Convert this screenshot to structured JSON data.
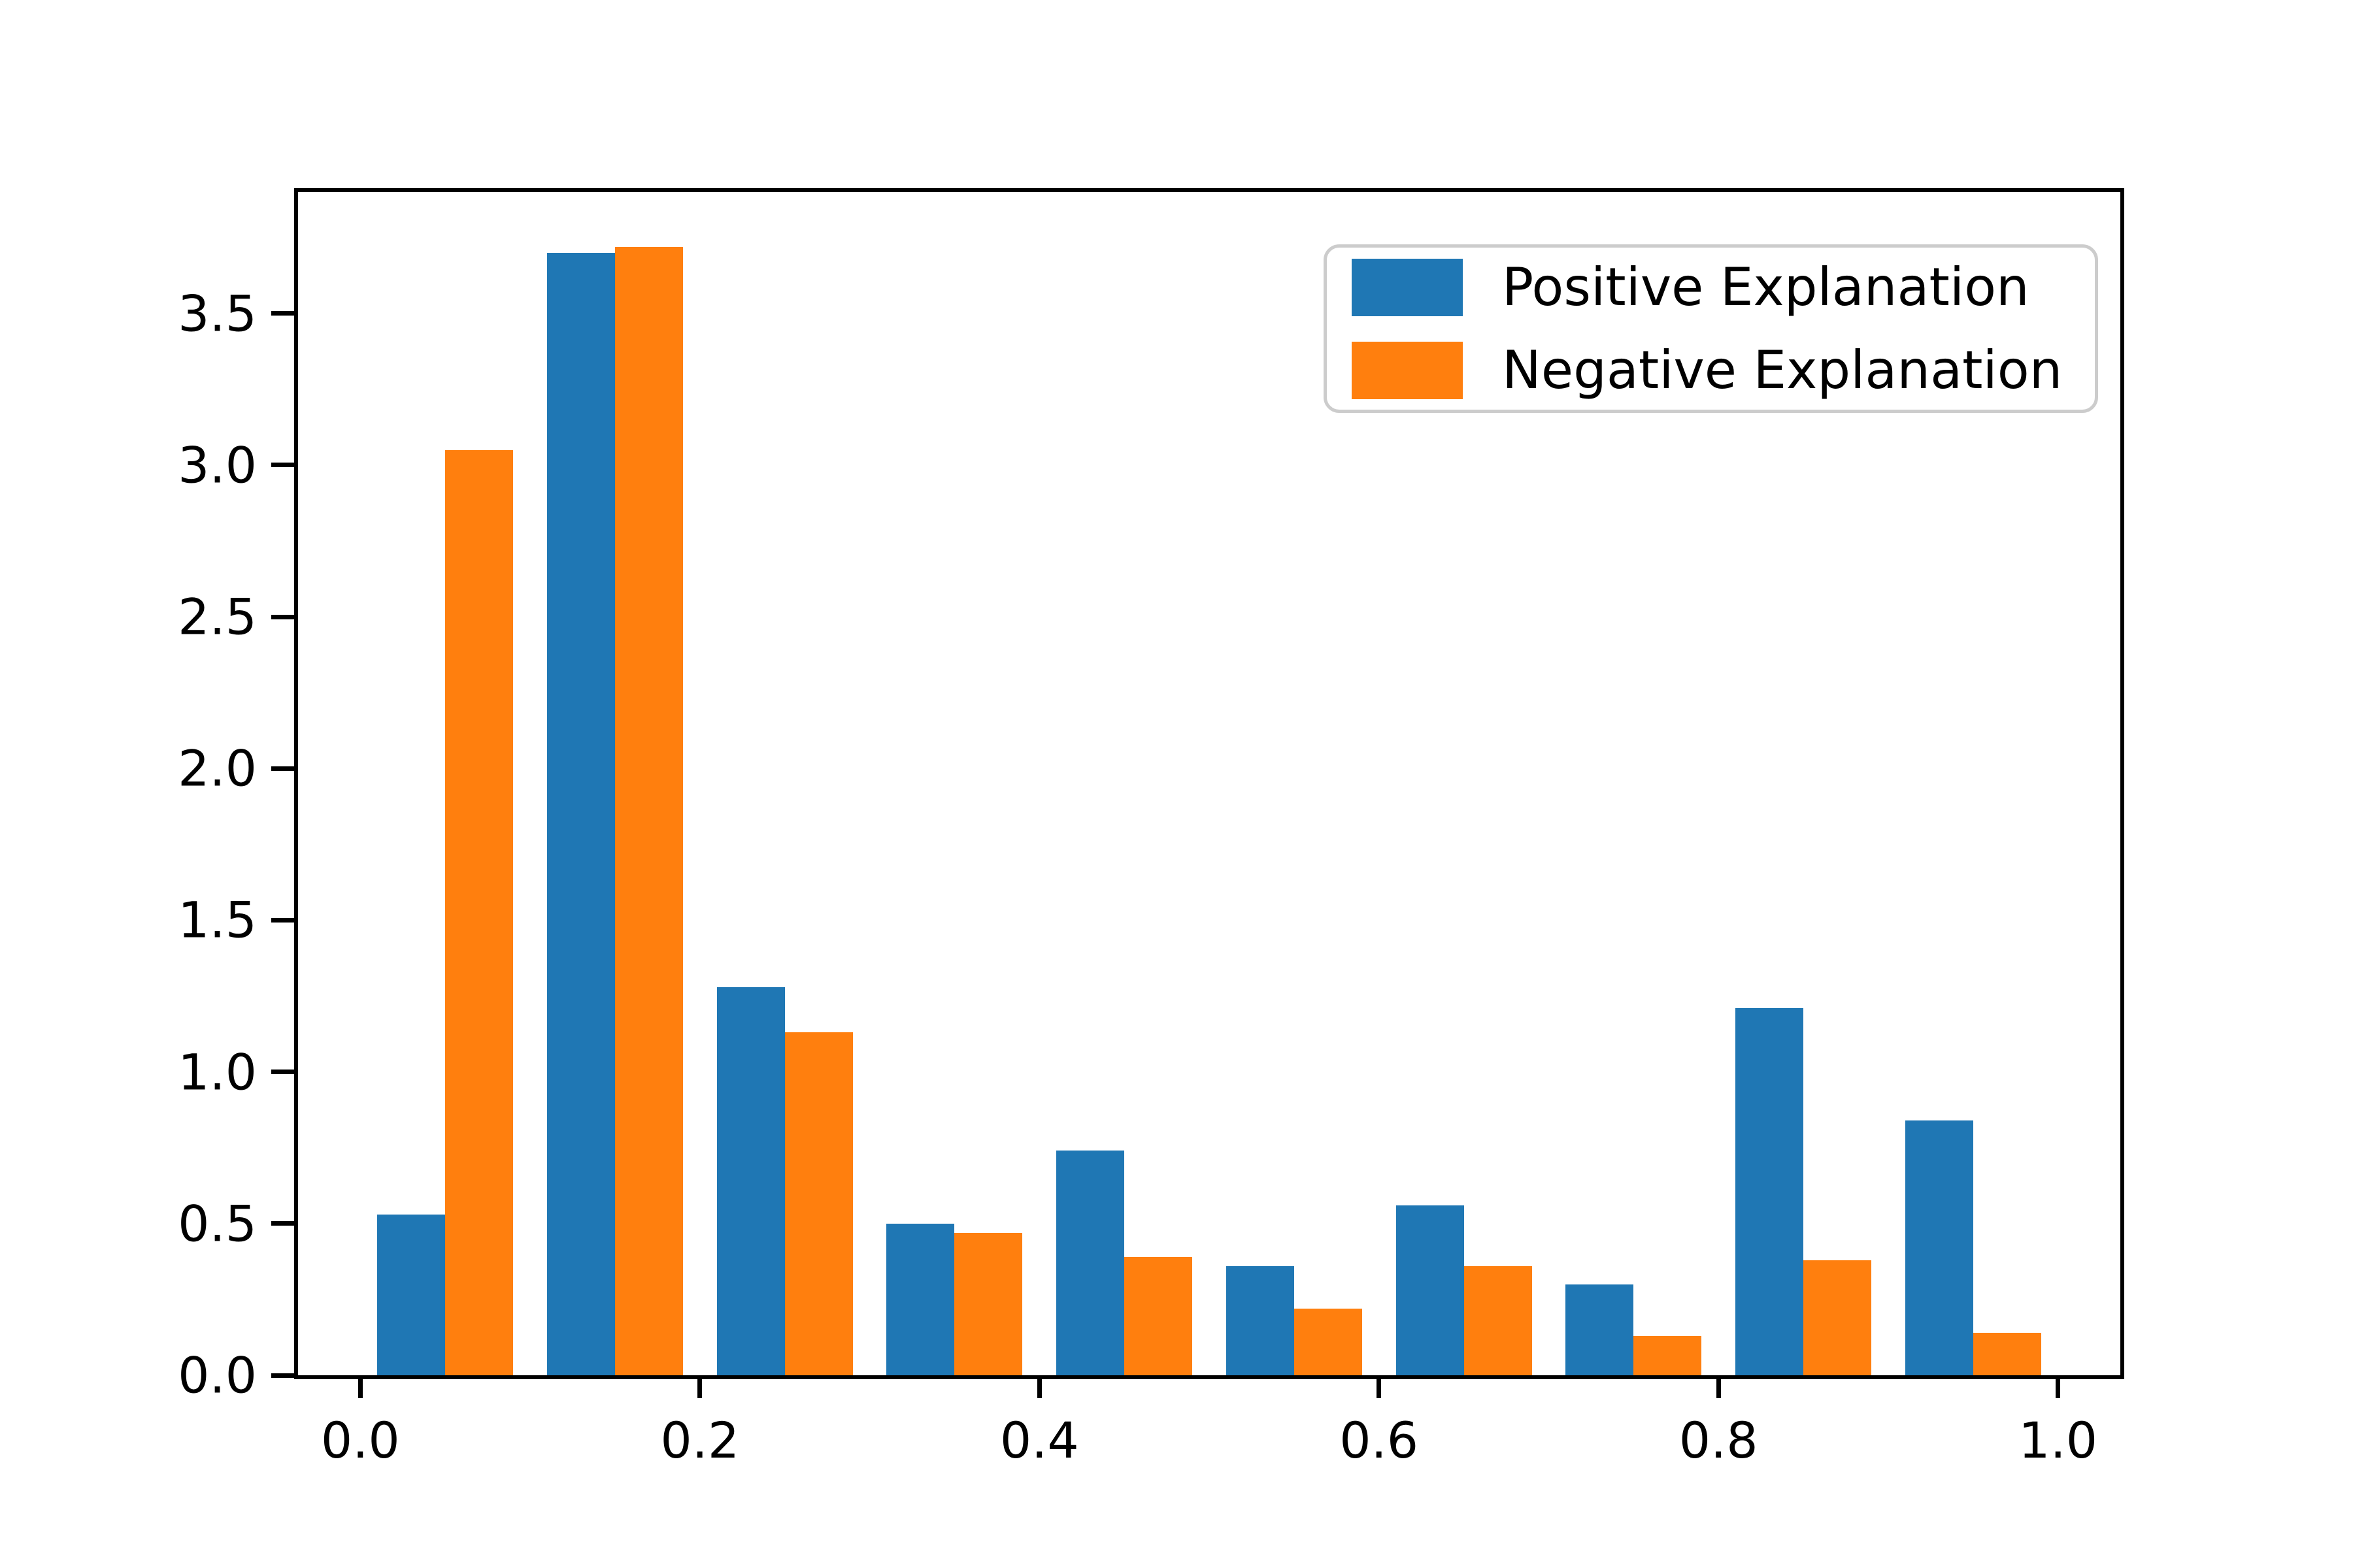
{
  "chart_data": {
    "type": "bar",
    "subtype": "histogram-density",
    "title": "",
    "xlabel": "",
    "ylabel": "",
    "x_bin_edges": [
      0.0,
      0.1,
      0.2,
      0.3,
      0.4,
      0.5,
      0.6,
      0.7,
      0.8,
      0.9,
      1.0
    ],
    "series": [
      {
        "name": "Positive Explanation",
        "color": "#1f77b4",
        "values": [
          0.53,
          3.7,
          1.28,
          0.5,
          0.74,
          0.36,
          0.56,
          0.3,
          1.21,
          0.84
        ]
      },
      {
        "name": "Negative Explanation",
        "color": "#ff7f0e",
        "values": [
          3.05,
          3.72,
          1.13,
          0.47,
          0.39,
          0.22,
          0.36,
          0.13,
          0.38,
          0.14
        ]
      }
    ],
    "x_ticks": [
      {
        "value": 0.0,
        "label": "0.0"
      },
      {
        "value": 0.2,
        "label": "0.2"
      },
      {
        "value": 0.4,
        "label": "0.4"
      },
      {
        "value": 0.6,
        "label": "0.6"
      },
      {
        "value": 0.8,
        "label": "0.8"
      },
      {
        "value": 1.0,
        "label": "1.0"
      }
    ],
    "y_ticks": [
      {
        "value": 0.0,
        "label": "0.0"
      },
      {
        "value": 0.5,
        "label": "0.5"
      },
      {
        "value": 1.0,
        "label": "1.0"
      },
      {
        "value": 1.5,
        "label": "1.5"
      },
      {
        "value": 2.0,
        "label": "2.0"
      },
      {
        "value": 2.5,
        "label": "2.5"
      },
      {
        "value": 3.0,
        "label": "3.0"
      },
      {
        "value": 3.5,
        "label": "3.5"
      }
    ],
    "xlim": [
      -0.039,
      1.039
    ],
    "ylim": [
      0,
      3.9
    ],
    "bar_group_inner_offset": 0.01,
    "bar_width": 0.04,
    "grid": false,
    "legend_position": "upper right",
    "axis_color": "#000000",
    "background_color": "#ffffff",
    "legend_border_color": "#cccccc"
  }
}
